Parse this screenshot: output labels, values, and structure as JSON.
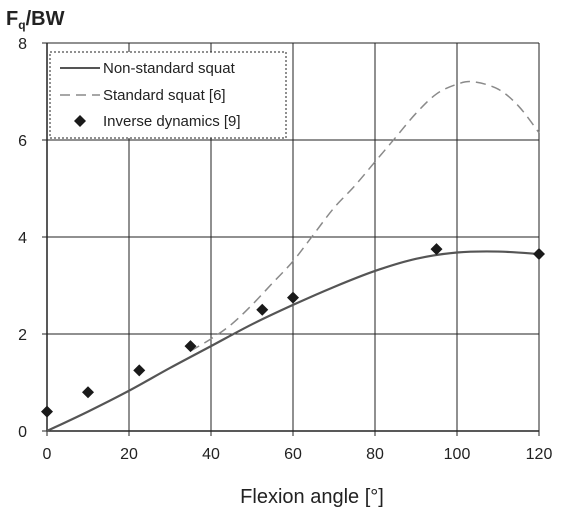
{
  "chart_data": {
    "type": "line",
    "title": "",
    "ylabel_main": "F",
    "ylabel_sub": "q",
    "ylabel_tail": "/BW",
    "xlabel": "Flexion angle [°]",
    "xlim": [
      0,
      120
    ],
    "ylim": [
      0,
      8
    ],
    "xticks": [
      "0",
      "20",
      "40",
      "60",
      "80",
      "100",
      "120"
    ],
    "yticks": [
      "0",
      "2",
      "4",
      "6",
      "8"
    ],
    "grid": true,
    "legend_placement": "top-left",
    "series": [
      {
        "name": "Non-standard squat",
        "style": "solid",
        "color": "#555555",
        "x": [
          0,
          10,
          20,
          30,
          40,
          50,
          60,
          70,
          80,
          90,
          100,
          110,
          120
        ],
        "y": [
          0,
          0.4,
          0.83,
          1.3,
          1.75,
          2.2,
          2.6,
          2.97,
          3.3,
          3.55,
          3.68,
          3.7,
          3.65
        ]
      },
      {
        "name": "Standard squat [6]",
        "style": "dashed",
        "color": "#8a8a8a",
        "x": [
          35,
          40,
          45,
          50,
          55,
          60,
          65,
          70,
          75,
          80,
          85,
          90,
          95,
          100,
          104,
          110,
          115,
          120
        ],
        "y": [
          1.65,
          1.9,
          2.2,
          2.6,
          3.05,
          3.5,
          4.05,
          4.6,
          5.05,
          5.55,
          6.05,
          6.55,
          6.95,
          7.15,
          7.2,
          7.05,
          6.7,
          6.15
        ]
      },
      {
        "name": "Inverse dynamics [9]",
        "style": "marker-diamond",
        "color": "#1a1a1a",
        "x": [
          0,
          10,
          22.5,
          35,
          52.5,
          60,
          95,
          120
        ],
        "y": [
          0.4,
          0.8,
          1.25,
          1.75,
          2.5,
          2.75,
          3.75,
          3.65
        ]
      }
    ]
  }
}
